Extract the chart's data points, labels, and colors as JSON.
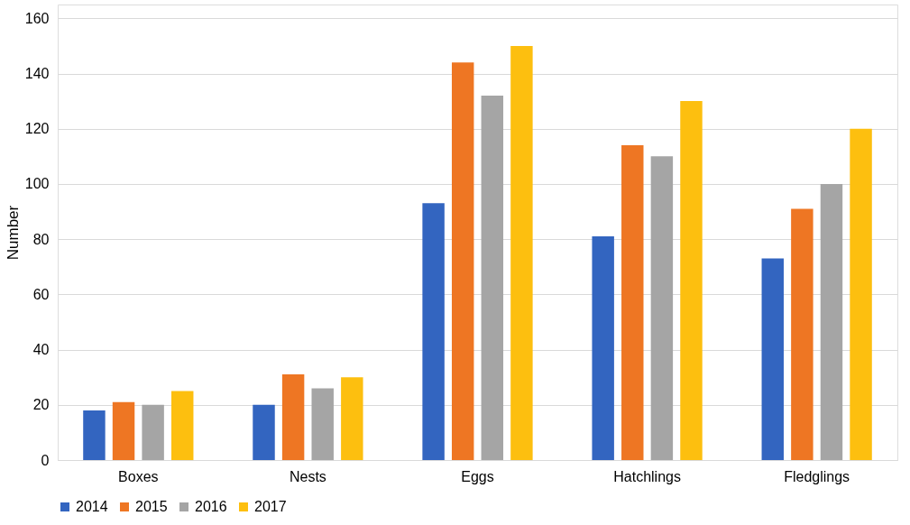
{
  "chart_data": {
    "type": "bar",
    "ylabel": "Number",
    "categories": [
      "Boxes",
      "Nests",
      "Eggs",
      "Hatchlings",
      "Fledglings"
    ],
    "series": [
      {
        "name": "2014",
        "color": "#3365c0",
        "values": [
          18,
          20,
          93,
          81,
          73
        ]
      },
      {
        "name": "2015",
        "color": "#ee7623",
        "values": [
          21,
          31,
          144,
          114,
          91
        ]
      },
      {
        "name": "2016",
        "color": "#a5a5a5",
        "values": [
          20,
          26,
          132,
          110,
          100
        ]
      },
      {
        "name": "2017",
        "color": "#fdbf0f",
        "values": [
          25,
          30,
          150,
          130,
          120
        ]
      }
    ],
    "ylim": [
      0,
      165
    ],
    "yticks": [
      0,
      20,
      40,
      60,
      80,
      100,
      120,
      140,
      160
    ],
    "grid": "y",
    "legend": "bottom"
  }
}
